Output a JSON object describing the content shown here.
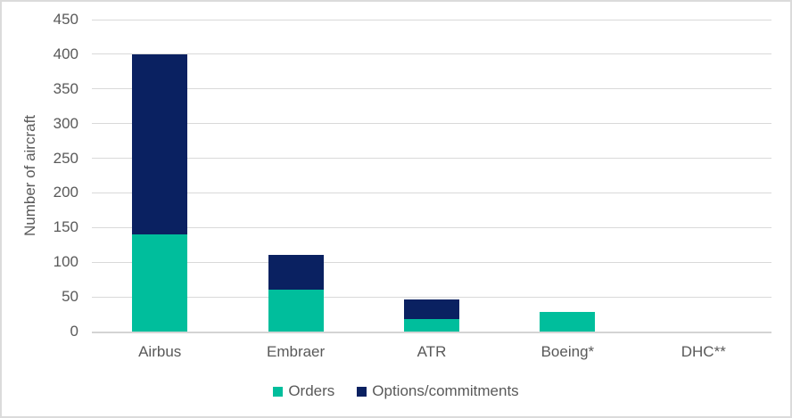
{
  "chart_data": {
    "type": "bar",
    "stacked": true,
    "title": "",
    "xlabel": "",
    "ylabel": "Number of aircraft",
    "categories": [
      "Airbus",
      "Embraer",
      "ATR",
      "Boeing*",
      "DHC**"
    ],
    "series": [
      {
        "name": "Orders",
        "color": "#00be9c",
        "values": [
          140,
          60,
          18,
          28,
          0
        ]
      },
      {
        "name": "Options/commitments",
        "color": "#0a2161",
        "values": [
          260,
          50,
          28,
          0,
          0
        ]
      }
    ],
    "totals": [
      400,
      110,
      46,
      28,
      0
    ],
    "ylim": [
      0,
      450
    ],
    "yticks": [
      0,
      50,
      100,
      150,
      200,
      250,
      300,
      350,
      400,
      450
    ],
    "grid": "horizontal",
    "legend_position": "bottom",
    "text_color": "#595959",
    "grid_color": "#d9d9d9"
  }
}
